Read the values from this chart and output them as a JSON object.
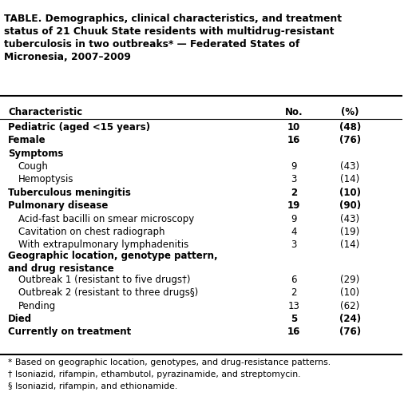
{
  "title": "TABLE. Demographics, clinical characteristics, and treatment\nstatus of 21 Chuuk State residents with multidrug-resistant\ntuberculosis in two outbreaks* — Federated States of\nMicronesia, 2007–2009",
  "col_headers": [
    "Characteristic",
    "No.",
    "(%)"
  ],
  "rows": [
    {
      "label": "Pediatric (aged <15 years)",
      "no": "10",
      "pct": "(48)",
      "bold": true,
      "indent": 0
    },
    {
      "label": "Female",
      "no": "16",
      "pct": "(76)",
      "bold": true,
      "indent": 0
    },
    {
      "label": "Symptoms",
      "no": "",
      "pct": "",
      "bold": true,
      "indent": 0
    },
    {
      "label": "Cough",
      "no": "9",
      "pct": "(43)",
      "bold": false,
      "indent": 1
    },
    {
      "label": "Hemoptysis",
      "no": "3",
      "pct": "(14)",
      "bold": false,
      "indent": 1
    },
    {
      "label": "Tuberculous meningitis",
      "no": "2",
      "pct": "(10)",
      "bold": true,
      "indent": 0
    },
    {
      "label": "Pulmonary disease",
      "no": "19",
      "pct": "(90)",
      "bold": true,
      "indent": 0
    },
    {
      "label": "Acid-fast bacilli on smear microscopy",
      "no": "9",
      "pct": "(43)",
      "bold": false,
      "indent": 1
    },
    {
      "label": "Cavitation on chest radiograph",
      "no": "4",
      "pct": "(19)",
      "bold": false,
      "indent": 1
    },
    {
      "label": "With extrapulmonary lymphadenitis",
      "no": "3",
      "pct": "(14)",
      "bold": false,
      "indent": 1
    },
    {
      "label": "Geographic location, genotype pattern,\nand drug resistance",
      "no": "",
      "pct": "",
      "bold": true,
      "indent": 0
    },
    {
      "label": "Outbreak 1 (resistant to five drugs†)",
      "no": "6",
      "pct": "(29)",
      "bold": false,
      "indent": 1
    },
    {
      "label": "Outbreak 2 (resistant to three drugs§)",
      "no": "2",
      "pct": "(10)",
      "bold": false,
      "indent": 1
    },
    {
      "label": "Pending",
      "no": "13",
      "pct": "(62)",
      "bold": false,
      "indent": 1
    },
    {
      "label": "Died",
      "no": "5",
      "pct": "(24)",
      "bold": true,
      "indent": 0
    },
    {
      "label": "Currently on treatment",
      "no": "16",
      "pct": "(76)",
      "bold": true,
      "indent": 0
    }
  ],
  "footnotes": [
    "* Based on geographic location, genotypes, and drug-resistance patterns.",
    "† Isoniazid, rifampin, ethambutol, pyrazinamide, and streptomycin.",
    "§ Isoniazid, rifampin, and ethionamide."
  ],
  "bg_color": "#ffffff",
  "text_color": "#000000",
  "font_size": 8.5,
  "title_font_size": 8.8,
  "footnote_font_size": 7.8
}
